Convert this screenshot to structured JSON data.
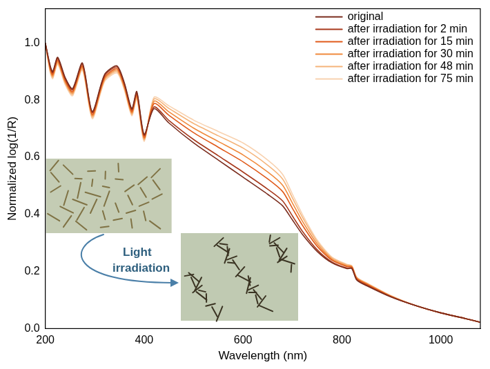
{
  "chart_data": {
    "type": "line",
    "x_label": "Wavelength (nm)",
    "y_label": "Normalized log(1/R)",
    "annotation": "Light irradiation",
    "x": [
      200,
      210,
      215,
      225,
      240,
      255,
      275,
      295,
      320,
      345,
      360,
      375,
      385,
      400,
      420,
      450,
      500,
      550,
      600,
      650,
      680,
      700,
      720,
      750,
      780,
      810,
      820,
      830,
      850,
      900,
      950,
      1000,
      1050,
      1080
    ],
    "series": [
      {
        "name": "original",
        "color": "#7b2d1e",
        "values": [
          1.0,
          0.92,
          0.9,
          0.95,
          0.88,
          0.84,
          0.93,
          0.76,
          0.89,
          0.92,
          0.86,
          0.77,
          0.83,
          0.68,
          0.77,
          0.72,
          0.65,
          0.59,
          0.53,
          0.47,
          0.43,
          0.38,
          0.33,
          0.27,
          0.23,
          0.21,
          0.21,
          0.17,
          0.15,
          0.11,
          0.08,
          0.055,
          0.035,
          0.022
        ]
      },
      {
        "name": "after irradiation for 2 min",
        "color": "#a8391c",
        "values": [
          1.0,
          0.916,
          0.896,
          0.946,
          0.876,
          0.836,
          0.926,
          0.756,
          0.886,
          0.916,
          0.856,
          0.766,
          0.826,
          0.676,
          0.776,
          0.729,
          0.662,
          0.605,
          0.548,
          0.488,
          0.447,
          0.394,
          0.341,
          0.276,
          0.233,
          0.212,
          0.212,
          0.172,
          0.152,
          0.111,
          0.08,
          0.055,
          0.035,
          0.022
        ]
      },
      {
        "name": "after irradiation for 15 min",
        "color": "#e05a1a",
        "values": [
          1.0,
          0.91,
          0.89,
          0.94,
          0.87,
          0.83,
          0.92,
          0.75,
          0.88,
          0.91,
          0.85,
          0.76,
          0.82,
          0.67,
          0.788,
          0.747,
          0.686,
          0.635,
          0.584,
          0.524,
          0.48,
          0.421,
          0.362,
          0.288,
          0.239,
          0.217,
          0.215,
          0.175,
          0.155,
          0.112,
          0.08,
          0.055,
          0.035,
          0.022
        ]
      },
      {
        "name": "after irradiation for 30 min",
        "color": "#f08a3c",
        "values": [
          1.0,
          0.905,
          0.885,
          0.935,
          0.865,
          0.825,
          0.915,
          0.745,
          0.875,
          0.905,
          0.845,
          0.755,
          0.815,
          0.665,
          0.796,
          0.759,
          0.702,
          0.655,
          0.608,
          0.548,
          0.502,
          0.439,
          0.376,
          0.296,
          0.243,
          0.22,
          0.217,
          0.177,
          0.157,
          0.113,
          0.08,
          0.055,
          0.035,
          0.022
        ]
      },
      {
        "name": "after irradiation for 48 min",
        "color": "#f5b47a",
        "values": [
          1.0,
          0.9,
          0.88,
          0.93,
          0.86,
          0.82,
          0.91,
          0.74,
          0.87,
          0.9,
          0.84,
          0.75,
          0.81,
          0.66,
          0.804,
          0.771,
          0.718,
          0.675,
          0.632,
          0.572,
          0.524,
          0.457,
          0.39,
          0.304,
          0.247,
          0.223,
          0.219,
          0.179,
          0.159,
          0.114,
          0.08,
          0.055,
          0.035,
          0.022
        ]
      },
      {
        "name": "after irradiation for 75 min",
        "color": "#f8d2b0",
        "values": [
          1.0,
          0.895,
          0.875,
          0.925,
          0.855,
          0.815,
          0.905,
          0.735,
          0.865,
          0.895,
          0.835,
          0.745,
          0.805,
          0.655,
          0.81,
          0.78,
          0.73,
          0.69,
          0.65,
          0.59,
          0.54,
          0.47,
          0.4,
          0.31,
          0.25,
          0.225,
          0.22,
          0.18,
          0.16,
          0.115,
          0.08,
          0.055,
          0.035,
          0.022
        ]
      }
    ],
    "xlim": [
      200,
      1080
    ],
    "xticks": [
      200,
      400,
      600,
      800,
      1000
    ],
    "ylim": [
      0,
      1.12
    ],
    "yticks": [
      {
        "value": 0,
        "label": "0.0"
      },
      0.2,
      0.4,
      0.6,
      0.8,
      {
        "value": 1,
        "label": "1.0"
      }
    ],
    "grid": false,
    "legend": "top-right"
  }
}
